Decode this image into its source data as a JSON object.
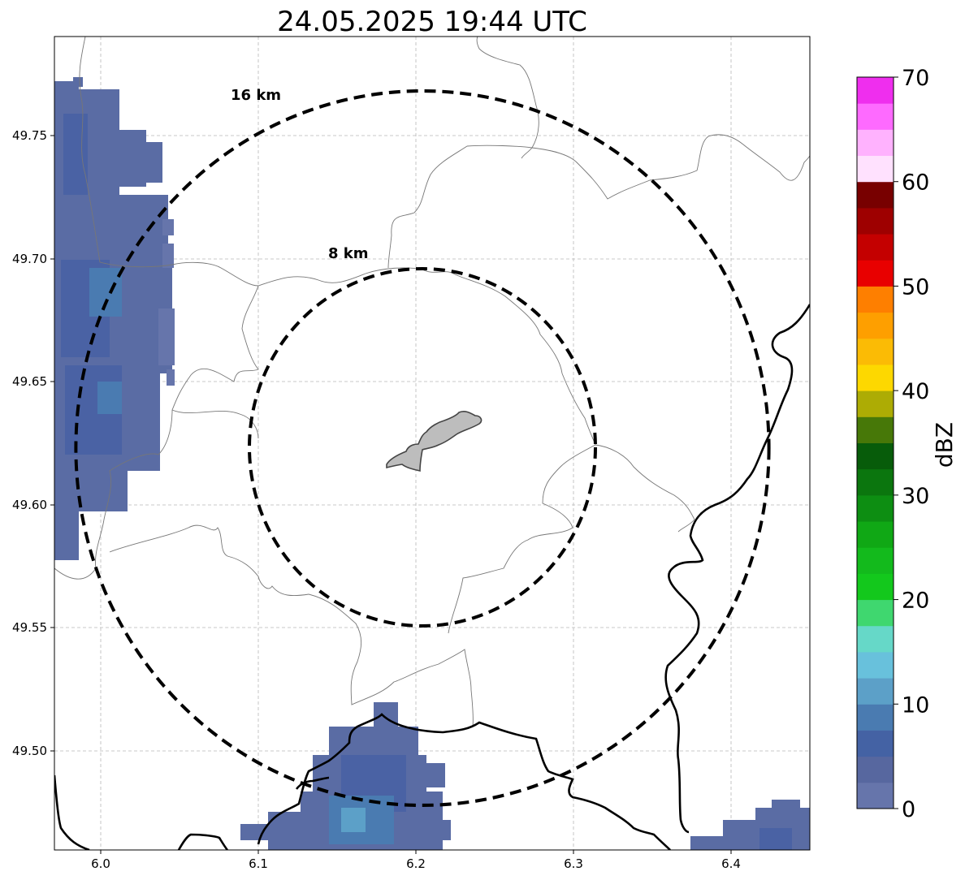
{
  "title": "24.05.2025 19:44 UTC",
  "map": {
    "lon_range": [
      5.97,
      6.45
    ],
    "lat_range": [
      49.46,
      49.79
    ],
    "x_ticks": [
      "6.0",
      "6.1",
      "6.2",
      "6.3",
      "6.4"
    ],
    "y_ticks": [
      "49.50",
      "49.55",
      "49.60",
      "49.65",
      "49.70",
      "49.75"
    ],
    "grid": true,
    "center_feature": "city-outline",
    "rings": [
      {
        "label": "8 km",
        "radius_km": 8,
        "style": "dashed"
      },
      {
        "label": "16 km",
        "radius_km": 16,
        "style": "dashed"
      }
    ],
    "reflectivity_areas": [
      "west edge cluster",
      "south cluster",
      "south-east corner cluster"
    ]
  },
  "colorbar": {
    "label": "dBZ",
    "range": [
      0,
      70
    ],
    "ticks": [
      "0",
      "10",
      "20",
      "30",
      "40",
      "50",
      "60",
      "70"
    ],
    "colors": [
      "#6675ab",
      "#57679f",
      "#4462a4",
      "#4a7bb1",
      "#5ca0c8",
      "#68c1dc",
      "#66d8c8",
      "#3fd76f",
      "#13c81c",
      "#13ba1c",
      "#10a815",
      "#0d8e12",
      "#0b760e",
      "#075c0a",
      "#477808",
      "#adac04",
      "#fdd800",
      "#fbbb05",
      "#fe9f00",
      "#fe7f00",
      "#e80000",
      "#c40000",
      "#9e0000",
      "#780000",
      "#ffe1fe",
      "#ffb2fe",
      "#fe6aff",
      "#ef2eee"
    ]
  }
}
